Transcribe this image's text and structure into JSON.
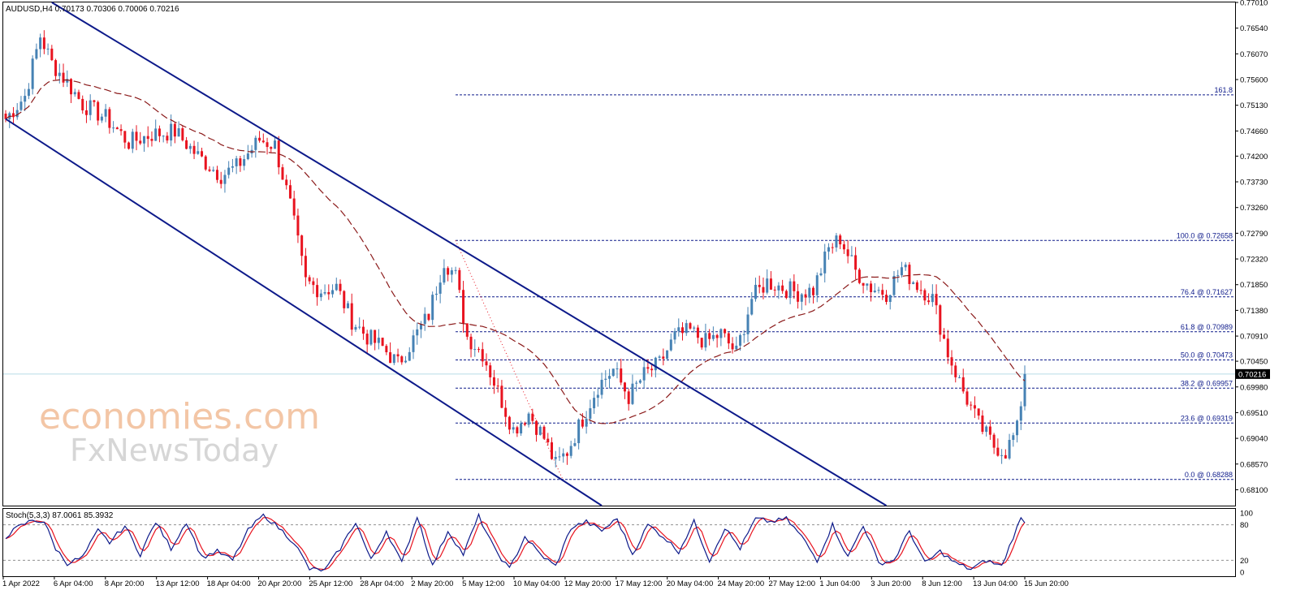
{
  "header": {
    "symbol_info": "AUDUSD,H4",
    "ohlc": "0.70173 0.70306 0.70006 0.70216",
    "stoch_info": "Stoch(5,3,3) 87.0061 85.3932"
  },
  "watermark": {
    "line1": "economies.com",
    "line2": "FxNewsToday"
  },
  "colors": {
    "bull": "#4682b4",
    "bear": "#e8131f",
    "channel": "#0d1a8a",
    "ma": "#8b1a1a",
    "fib": "#0d1a8a",
    "stoch_main": "#0d1a8a",
    "stoch_signal": "#e8131f",
    "current_price_line": "#b8dce8"
  },
  "chart_data": [
    {
      "type": "candlestick",
      "title": "AUDUSD,H4",
      "ylim": [
        0.6781,
        0.7701
      ],
      "y_ticks": [
        "0.77010",
        "0.76540",
        "0.76070",
        "0.75600",
        "0.75130",
        "0.74660",
        "0.74200",
        "0.73730",
        "0.73260",
        "0.72790",
        "0.72320",
        "0.71850",
        "0.71380",
        "0.70910",
        "0.70450",
        "0.69980",
        "0.69510",
        "0.69040",
        "0.68570",
        "0.68100"
      ],
      "x_ticks": [
        "1 Apr 2022",
        "6 Apr 04:00",
        "8 Apr 20:00",
        "13 Apr 12:00",
        "18 Apr 04:00",
        "20 Apr 20:00",
        "25 Apr 12:00",
        "28 Apr 04:00",
        "2 May 20:00",
        "5 May 12:00",
        "10 May 04:00",
        "12 May 20:00",
        "17 May 12:00",
        "20 May 04:00",
        "24 May 20:00",
        "27 May 12:00",
        "1 Jun 04:00",
        "3 Jun 20:00",
        "8 Jun 12:00",
        "13 Jun 04:00",
        "15 Jun 20:00"
      ],
      "current_price": 0.70216,
      "current_price_label": "0.70216",
      "close_path": [
        {
          "bar": 0,
          "close": 0.7488
        },
        {
          "bar": 5,
          "close": 0.753
        },
        {
          "bar": 9,
          "close": 0.764
        },
        {
          "bar": 12,
          "close": 0.759
        },
        {
          "bar": 16,
          "close": 0.7555
        },
        {
          "bar": 20,
          "close": 0.7515
        },
        {
          "bar": 26,
          "close": 0.749
        },
        {
          "bar": 32,
          "close": 0.7445
        },
        {
          "bar": 38,
          "close": 0.746
        },
        {
          "bar": 44,
          "close": 0.7465
        },
        {
          "bar": 50,
          "close": 0.742
        },
        {
          "bar": 56,
          "close": 0.7385
        },
        {
          "bar": 60,
          "close": 0.74
        },
        {
          "bar": 66,
          "close": 0.745
        },
        {
          "bar": 70,
          "close": 0.744
        },
        {
          "bar": 74,
          "close": 0.733
        },
        {
          "bar": 78,
          "close": 0.719
        },
        {
          "bar": 82,
          "close": 0.7175
        },
        {
          "bar": 86,
          "close": 0.718
        },
        {
          "bar": 90,
          "close": 0.712
        },
        {
          "bar": 94,
          "close": 0.709
        },
        {
          "bar": 98,
          "close": 0.707
        },
        {
          "bar": 102,
          "close": 0.704
        },
        {
          "bar": 106,
          "close": 0.7085
        },
        {
          "bar": 110,
          "close": 0.713
        },
        {
          "bar": 114,
          "close": 0.723
        },
        {
          "bar": 117,
          "close": 0.72
        },
        {
          "bar": 120,
          "close": 0.709
        },
        {
          "bar": 124,
          "close": 0.706
        },
        {
          "bar": 128,
          "close": 0.699
        },
        {
          "bar": 132,
          "close": 0.692
        },
        {
          "bar": 136,
          "close": 0.695
        },
        {
          "bar": 140,
          "close": 0.6905
        },
        {
          "bar": 143,
          "close": 0.6855
        },
        {
          "bar": 146,
          "close": 0.688
        },
        {
          "bar": 150,
          "close": 0.694
        },
        {
          "bar": 154,
          "close": 0.7
        },
        {
          "bar": 158,
          "close": 0.703
        },
        {
          "bar": 162,
          "close": 0.698
        },
        {
          "bar": 166,
          "close": 0.702
        },
        {
          "bar": 170,
          "close": 0.704
        },
        {
          "bar": 174,
          "close": 0.709
        },
        {
          "bar": 178,
          "close": 0.71
        },
        {
          "bar": 182,
          "close": 0.708
        },
        {
          "bar": 186,
          "close": 0.7095
        },
        {
          "bar": 190,
          "close": 0.706
        },
        {
          "bar": 194,
          "close": 0.716
        },
        {
          "bar": 198,
          "close": 0.719
        },
        {
          "bar": 202,
          "close": 0.718
        },
        {
          "bar": 206,
          "close": 0.717
        },
        {
          "bar": 210,
          "close": 0.7175
        },
        {
          "bar": 214,
          "close": 0.725
        },
        {
          "bar": 217,
          "close": 0.727
        },
        {
          "bar": 221,
          "close": 0.721
        },
        {
          "bar": 225,
          "close": 0.718
        },
        {
          "bar": 229,
          "close": 0.717
        },
        {
          "bar": 233,
          "close": 0.7215
        },
        {
          "bar": 237,
          "close": 0.7185
        },
        {
          "bar": 241,
          "close": 0.716
        },
        {
          "bar": 245,
          "close": 0.706
        },
        {
          "bar": 249,
          "close": 0.699
        },
        {
          "bar": 253,
          "close": 0.693
        },
        {
          "bar": 257,
          "close": 0.689
        },
        {
          "bar": 260,
          "close": 0.688
        },
        {
          "bar": 263,
          "close": 0.692
        },
        {
          "bar": 265,
          "close": 0.7021
        }
      ],
      "fibonacci": [
        {
          "label": "161.8",
          "value": 0.7532
        },
        {
          "label": "100.0 @ 0.72658",
          "value": 0.72658
        },
        {
          "label": "76.4 @ 0.71627",
          "value": 0.71627
        },
        {
          "label": "61.8 @ 0.70989",
          "value": 0.70989
        },
        {
          "label": "50.0 @ 0.70473",
          "value": 0.70473
        },
        {
          "label": "38.2 @ 0.69957",
          "value": 0.69957
        },
        {
          "label": "23.6 @ 0.69319",
          "value": 0.69319
        },
        {
          "label": "0.0 @ 0.68288",
          "value": 0.68288
        }
      ],
      "channel_lines": [
        {
          "from": {
            "bar": 0,
            "price": 0.7488
          },
          "to": {
            "bar": 155,
            "price": 0.6781
          }
        },
        {
          "from": {
            "bar": 12,
            "price": 0.7701
          },
          "to": {
            "bar": 229,
            "price": 0.6781
          }
        }
      ]
    },
    {
      "type": "line",
      "title": "Stoch(5,3,3) 87.0061 85.3932",
      "ylim": [
        0,
        100
      ],
      "y_ticks": [
        "100",
        "80",
        "20",
        "0"
      ],
      "levels": [
        80,
        20
      ],
      "main_path": [
        {
          "bar": 0,
          "value": 60
        },
        {
          "bar": 3,
          "value": 75
        },
        {
          "bar": 7,
          "value": 88
        },
        {
          "bar": 10,
          "value": 85
        },
        {
          "bar": 13,
          "value": 40
        },
        {
          "bar": 16,
          "value": 15
        },
        {
          "bar": 20,
          "value": 25
        },
        {
          "bar": 24,
          "value": 70
        },
        {
          "bar": 27,
          "value": 50
        },
        {
          "bar": 31,
          "value": 78
        },
        {
          "bar": 35,
          "value": 30
        },
        {
          "bar": 39,
          "value": 85
        },
        {
          "bar": 43,
          "value": 40
        },
        {
          "bar": 47,
          "value": 85
        },
        {
          "bar": 51,
          "value": 25
        },
        {
          "bar": 55,
          "value": 35
        },
        {
          "bar": 59,
          "value": 20
        },
        {
          "bar": 63,
          "value": 70
        },
        {
          "bar": 67,
          "value": 97
        },
        {
          "bar": 71,
          "value": 75
        },
        {
          "bar": 75,
          "value": 50
        },
        {
          "bar": 79,
          "value": 5
        },
        {
          "bar": 83,
          "value": 3
        },
        {
          "bar": 87,
          "value": 40
        },
        {
          "bar": 91,
          "value": 85
        },
        {
          "bar": 95,
          "value": 20
        },
        {
          "bar": 99,
          "value": 70
        },
        {
          "bar": 103,
          "value": 15
        },
        {
          "bar": 107,
          "value": 95
        },
        {
          "bar": 111,
          "value": 10
        },
        {
          "bar": 115,
          "value": 70
        },
        {
          "bar": 119,
          "value": 30
        },
        {
          "bar": 123,
          "value": 95
        },
        {
          "bar": 127,
          "value": 40
        },
        {
          "bar": 131,
          "value": 5
        },
        {
          "bar": 135,
          "value": 60
        },
        {
          "bar": 139,
          "value": 30
        },
        {
          "bar": 143,
          "value": 10
        },
        {
          "bar": 147,
          "value": 75
        },
        {
          "bar": 151,
          "value": 85
        },
        {
          "bar": 155,
          "value": 70
        },
        {
          "bar": 159,
          "value": 90
        },
        {
          "bar": 163,
          "value": 30
        },
        {
          "bar": 167,
          "value": 80
        },
        {
          "bar": 171,
          "value": 60
        },
        {
          "bar": 175,
          "value": 35
        },
        {
          "bar": 179,
          "value": 85
        },
        {
          "bar": 183,
          "value": 20
        },
        {
          "bar": 187,
          "value": 75
        },
        {
          "bar": 191,
          "value": 40
        },
        {
          "bar": 195,
          "value": 90
        },
        {
          "bar": 199,
          "value": 85
        },
        {
          "bar": 203,
          "value": 90
        },
        {
          "bar": 207,
          "value": 60
        },
        {
          "bar": 211,
          "value": 20
        },
        {
          "bar": 215,
          "value": 80
        },
        {
          "bar": 219,
          "value": 25
        },
        {
          "bar": 223,
          "value": 80
        },
        {
          "bar": 227,
          "value": 15
        },
        {
          "bar": 231,
          "value": 20
        },
        {
          "bar": 235,
          "value": 70
        },
        {
          "bar": 239,
          "value": 15
        },
        {
          "bar": 243,
          "value": 35
        },
        {
          "bar": 247,
          "value": 15
        },
        {
          "bar": 251,
          "value": 5
        },
        {
          "bar": 255,
          "value": 20
        },
        {
          "bar": 259,
          "value": 10
        },
        {
          "bar": 262,
          "value": 60
        },
        {
          "bar": 264,
          "value": 90
        },
        {
          "bar": 265,
          "value": 87
        }
      ],
      "signal_lag_bars": 2
    }
  ]
}
